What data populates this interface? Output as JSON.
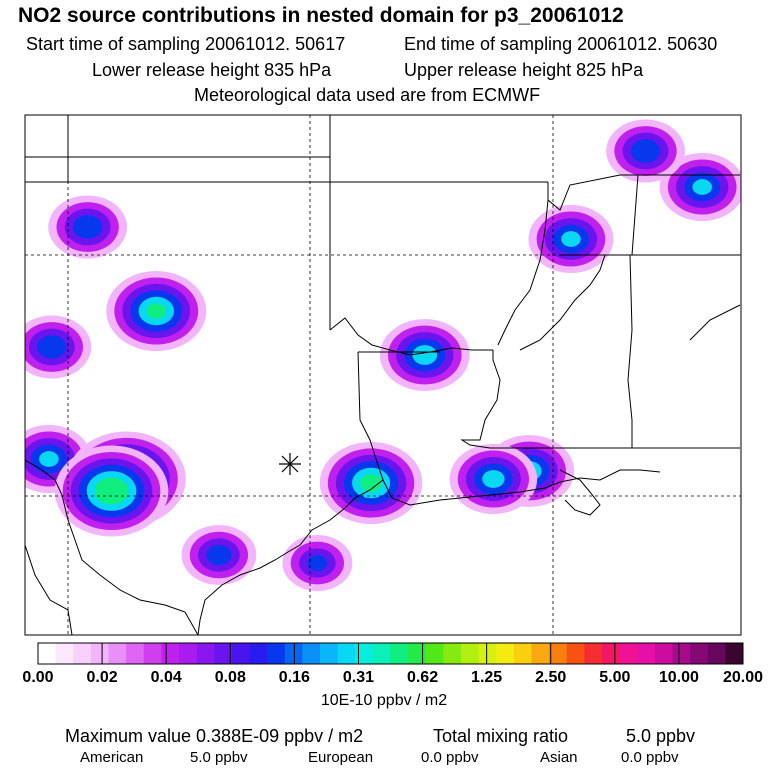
{
  "header": {
    "title": "NO2 source contributions in nested domain for p3_20061012",
    "start_label": "Start time of sampling 20061012. 50617",
    "end_label": "End time of sampling 20061012. 50630",
    "lower_label": "Lower release height  835 hPa",
    "upper_label": "Upper release height  825 hPa",
    "met_label": "Meteorological data used are from ECMWF"
  },
  "colorbar": {
    "tick_labels": [
      "0.00",
      "0.02",
      "0.04",
      "0.08",
      "0.16",
      "0.31",
      "0.62",
      "1.25",
      "2.50",
      "5.00",
      "10.00",
      "20.00"
    ],
    "units": "10E-10 ppbv / m2",
    "colors": [
      "#ffffff",
      "#fce8fe",
      "#f8d0fc",
      "#f2b4fa",
      "#e990f8",
      "#df66f4",
      "#d13ef0",
      "#c020ee",
      "#a81cee",
      "#8a18ee",
      "#6a14ee",
      "#4a14ee",
      "#2a1cee",
      "#0838ee",
      "#0a64f2",
      "#0a90f6",
      "#0ab6f8",
      "#08d8f4",
      "#08eedc",
      "#0af0b6",
      "#10ee80",
      "#24ea48",
      "#50e816",
      "#86ea10",
      "#b2ee10",
      "#d8f010",
      "#f2ec10",
      "#f8d010",
      "#f8a810",
      "#f87e10",
      "#f85210",
      "#f42e30",
      "#f21664",
      "#f01294",
      "#e80ea8",
      "#cc0c9e",
      "#a80a8c",
      "#860874",
      "#66065c",
      "#3a0630"
    ]
  },
  "footer": {
    "max_label": "Maximum value  0.388E-09 ppbv / m2",
    "total_label": "Total mixing ratio",
    "total_value": "5.0 ppbv",
    "american_label": "American",
    "american_value": "5.0 ppbv",
    "european_label": "European",
    "european_value": "0.0 ppbv",
    "asian_label": "Asian",
    "asian_value": "0.0 ppbv"
  },
  "map": {
    "source_marker": "asterisk",
    "plumes": [
      {
        "lon": -106.2,
        "lat": 30.4,
        "level": 0.08
      },
      {
        "lon": -103.6,
        "lat": 29.9,
        "level": 0.38
      },
      {
        "lon": -104.1,
        "lat": 29.6,
        "level": 0.3
      },
      {
        "lon": -102.6,
        "lat": 34.1,
        "level": 0.16
      },
      {
        "lon": -106.1,
        "lat": 33.2,
        "level": 0.06
      },
      {
        "lon": -95.4,
        "lat": 29.8,
        "level": 0.18
      },
      {
        "lon": -93.6,
        "lat": 33.0,
        "level": 0.1
      },
      {
        "lon": -90.1,
        "lat": 30.1,
        "level": 0.1
      },
      {
        "lon": -91.3,
        "lat": 29.9,
        "level": 0.09
      },
      {
        "lon": -84.3,
        "lat": 37.2,
        "level": 0.08
      },
      {
        "lon": -86.2,
        "lat": 38.1,
        "level": 0.06
      },
      {
        "lon": -88.7,
        "lat": 35.9,
        "level": 0.08
      },
      {
        "lon": -104.9,
        "lat": 36.2,
        "level": 0.06
      },
      {
        "lon": -100.5,
        "lat": 28.0,
        "level": 0.05
      },
      {
        "lon": -97.2,
        "lat": 27.8,
        "level": 0.04
      }
    ]
  }
}
